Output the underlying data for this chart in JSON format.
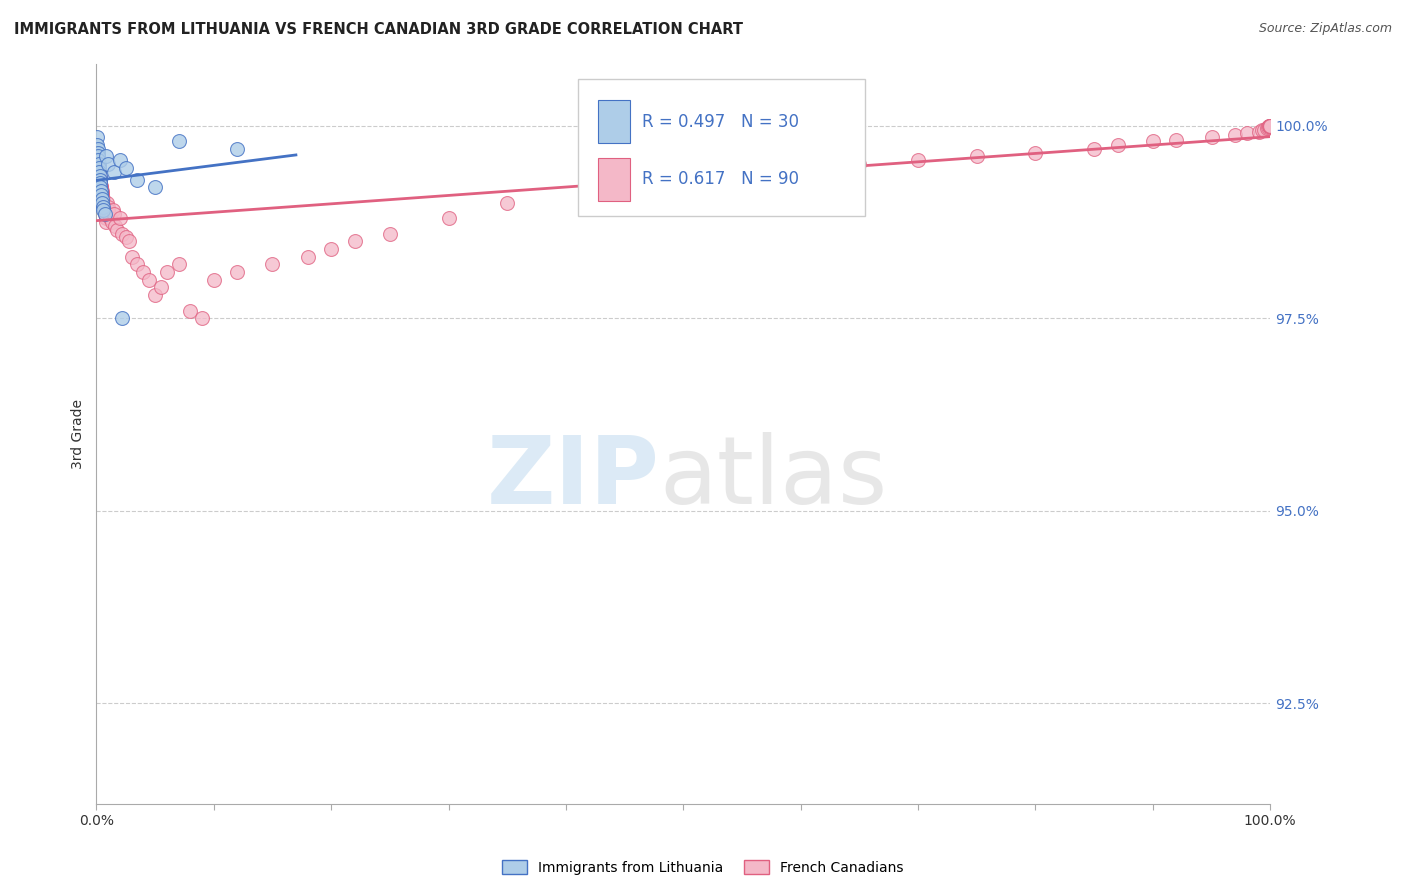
{
  "title": "IMMIGRANTS FROM LITHUANIA VS FRENCH CANADIAN 3RD GRADE CORRELATION CHART",
  "source": "Source: ZipAtlas.com",
  "ylabel": "3rd Grade",
  "xlim": [
    0.0,
    100.0
  ],
  "ylim": [
    91.2,
    100.8
  ],
  "yticks": [
    92.5,
    95.0,
    97.5,
    100.0
  ],
  "ytick_labels": [
    "92.5%",
    "95.0%",
    "97.5%",
    "100.0%"
  ],
  "xticks": [
    0.0,
    10.0,
    20.0,
    30.0,
    40.0,
    50.0,
    60.0,
    70.0,
    80.0,
    90.0,
    100.0
  ],
  "r_blue": 0.497,
  "n_blue": 30,
  "r_pink": 0.617,
  "n_pink": 90,
  "legend_label_blue": "Immigrants from Lithuania",
  "legend_label_pink": "French Canadians",
  "blue_color": "#aecde8",
  "pink_color": "#f4b8c8",
  "blue_line_color": "#4472c4",
  "pink_line_color": "#e06080",
  "background_color": "#ffffff",
  "blue_x": [
    0.05,
    0.08,
    0.1,
    0.12,
    0.15,
    0.18,
    0.2,
    0.22,
    0.25,
    0.28,
    0.3,
    0.32,
    0.35,
    0.38,
    0.4,
    0.45,
    0.5,
    0.55,
    0.6,
    0.7,
    0.8,
    1.0,
    1.5,
    2.0,
    2.5,
    3.5,
    5.0,
    7.0,
    12.0,
    2.2
  ],
  "blue_y": [
    99.85,
    99.75,
    99.7,
    99.65,
    99.6,
    99.55,
    99.5,
    99.45,
    99.4,
    99.35,
    99.3,
    99.25,
    99.2,
    99.15,
    99.1,
    99.05,
    99.0,
    98.95,
    98.9,
    98.85,
    99.6,
    99.5,
    99.4,
    99.55,
    99.45,
    99.3,
    99.2,
    99.8,
    99.7,
    97.5
  ],
  "pink_x": [
    0.05,
    0.08,
    0.1,
    0.12,
    0.15,
    0.18,
    0.2,
    0.22,
    0.25,
    0.28,
    0.3,
    0.32,
    0.35,
    0.38,
    0.4,
    0.42,
    0.45,
    0.48,
    0.5,
    0.52,
    0.55,
    0.58,
    0.6,
    0.62,
    0.65,
    0.68,
    0.7,
    0.72,
    0.75,
    0.78,
    0.8,
    0.85,
    0.9,
    0.95,
    1.0,
    1.1,
    1.2,
    1.3,
    1.4,
    1.5,
    1.6,
    1.8,
    2.0,
    2.2,
    2.5,
    2.8,
    3.0,
    3.5,
    4.0,
    4.5,
    5.0,
    5.5,
    6.0,
    7.0,
    8.0,
    9.0,
    10.0,
    12.0,
    15.0,
    18.0,
    20.0,
    22.0,
    25.0,
    30.0,
    35.0,
    42.0,
    50.0,
    55.0,
    60.0,
    65.0,
    70.0,
    75.0,
    80.0,
    85.0,
    87.0,
    90.0,
    92.0,
    95.0,
    97.0,
    98.0,
    99.0,
    99.3,
    99.5,
    99.7,
    99.8,
    99.9,
    99.92,
    99.95,
    99.97,
    99.99
  ],
  "pink_y": [
    99.6,
    99.55,
    99.5,
    99.48,
    99.45,
    99.42,
    99.4,
    99.38,
    99.35,
    99.32,
    99.3,
    99.28,
    99.25,
    99.22,
    99.2,
    99.18,
    99.15,
    99.12,
    99.1,
    99.08,
    99.05,
    99.02,
    99.0,
    98.98,
    98.95,
    98.92,
    98.9,
    98.88,
    98.85,
    98.82,
    98.8,
    98.75,
    99.0,
    98.95,
    98.9,
    98.85,
    98.8,
    98.75,
    98.9,
    98.85,
    98.7,
    98.65,
    98.8,
    98.6,
    98.55,
    98.5,
    98.3,
    98.2,
    98.1,
    98.0,
    97.8,
    97.9,
    98.1,
    98.2,
    97.6,
    97.5,
    98.0,
    98.1,
    98.2,
    98.3,
    98.4,
    98.5,
    98.6,
    98.8,
    99.0,
    99.1,
    99.2,
    99.3,
    99.4,
    99.5,
    99.55,
    99.6,
    99.65,
    99.7,
    99.75,
    99.8,
    99.82,
    99.85,
    99.88,
    99.9,
    99.92,
    99.94,
    99.95,
    99.97,
    99.98,
    100.0,
    100.0,
    100.0,
    100.0,
    100.0
  ]
}
